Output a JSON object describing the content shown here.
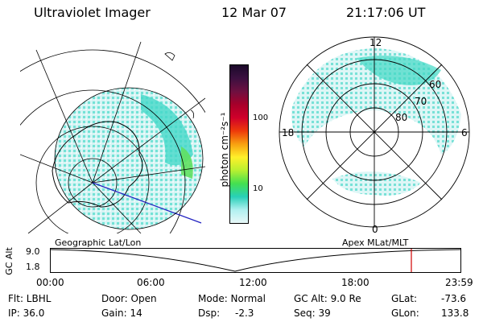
{
  "header": {
    "instrument": "Ultraviolet Imager",
    "date": "12 Mar 07",
    "time": "21:17:06 UT"
  },
  "colorbar": {
    "unit_label": "photon cm⁻²s⁻¹",
    "ticks": [
      "100",
      "10"
    ],
    "colors": [
      "#1b0a2a",
      "#3c1040",
      "#6e1040",
      "#a8002a",
      "#d0002a",
      "#ee3a0a",
      "#f8a010",
      "#fff02a",
      "#b8f030",
      "#44e050",
      "#28d0b8",
      "#b0f0f0",
      "#e8f8f8"
    ]
  },
  "geo_map": {
    "caption": "Geographic Lat/Lon"
  },
  "polar_plot": {
    "caption": "Apex MLat/MLT",
    "mlt_labels": {
      "top": "12",
      "bottom": "0",
      "left": "18",
      "right": "6"
    },
    "lat_labels": [
      "60",
      "70",
      "80"
    ]
  },
  "altitude_plot": {
    "ylabel": "GC Alt",
    "yticks": [
      "9.0",
      "1.8"
    ],
    "xticks": [
      "00:00",
      "06:00",
      "12:00",
      "18:00",
      "23:59"
    ],
    "marker_color": "#d00000"
  },
  "status": {
    "flt": "Flt: LBHL",
    "ip": "IP: 36.0",
    "door": "Door: Open",
    "gain": "Gain: 14",
    "mode": "Mode: Normal",
    "dsp_label": "Dsp:",
    "dsp_value": "-2.3",
    "gcalt": "GC Alt: 9.0 Re",
    "seq": "Seq: 39",
    "glat_label": "GLat:",
    "glat_value": "-73.6",
    "glon_label": "GLon:",
    "glon_value": "133.8"
  }
}
